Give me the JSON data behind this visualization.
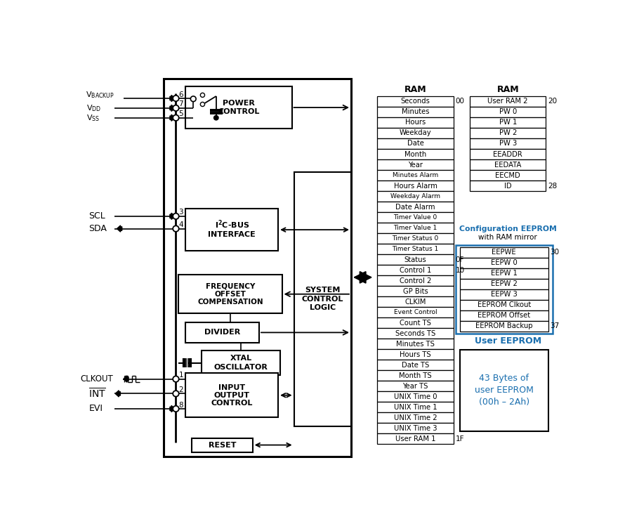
{
  "bg_color": "#ffffff",
  "line_color": "#000000",
  "blue_color": "#1a6faf",
  "fig_width": 9.0,
  "fig_height": 7.56,
  "ram_left_rows": [
    "Seconds",
    "Minutes",
    "Hours",
    "Weekday",
    "Date",
    "Month",
    "Year",
    "Minutes Alarm",
    "Hours Alarm",
    "Weekday Alarm",
    "Date Alarm",
    "Timer Value 0",
    "Timer Value 1",
    "Timer Status 0",
    "Timer Status 1",
    "Status",
    "Control 1",
    "Control 2",
    "GP Bits",
    "CLKIM",
    "Event Control",
    "Count TS",
    "Seconds TS",
    "Minutes TS",
    "Hours TS",
    "Date TS",
    "Month TS",
    "Year TS",
    "UNIX Time 0",
    "UNIX Time 1",
    "UNIX Time 2",
    "UNIX Time 3",
    "User RAM 1"
  ],
  "ram_right_rows": [
    "User RAM 2",
    "PW 0",
    "PW 1",
    "PW 2",
    "PW 3",
    "EEADDR",
    "EEDATA",
    "EECMD",
    "ID"
  ],
  "eeprom_rows": [
    "EEPWE",
    "EEPW 0",
    "EEPW 1",
    "EEPW 2",
    "EEPW 3",
    "EEPROM Clkout",
    "EEPROM Offset",
    "EEPROM Backup"
  ]
}
